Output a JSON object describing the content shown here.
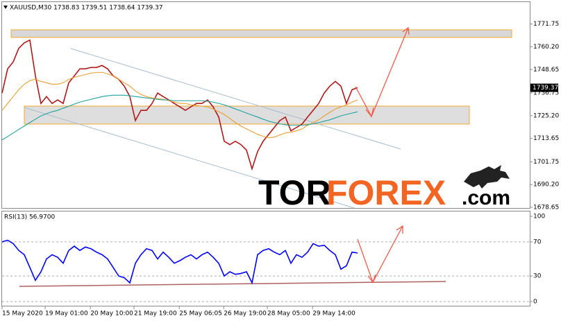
{
  "chart_data": [
    {
      "type": "line",
      "title": "XAUUSD,M30  1738.83 1739.51 1738.64 1739.37",
      "x": [
        0,
        1,
        2,
        3,
        4,
        5,
        6,
        7,
        8,
        9,
        10,
        11,
        12,
        13,
        14,
        15,
        16,
        17,
        18,
        19,
        20,
        21,
        22,
        23,
        24,
        25,
        26,
        27,
        28,
        29,
        30,
        31,
        32,
        33,
        34,
        35,
        36,
        37,
        38,
        39,
        40,
        41,
        42,
        43,
        44,
        45,
        46,
        47,
        48,
        49,
        50,
        51,
        52,
        53,
        54,
        55,
        56,
        57,
        58,
        59,
        60,
        61,
        62,
        63,
        64
      ],
      "series": [
        {
          "color": "#b01818",
          "values": [
            1736.7,
            1749.0,
            1752.5,
            1759.4,
            1762.2,
            1763.6,
            1745.4,
            1731.4,
            1734.9,
            1731.4,
            1733.2,
            1731.4,
            1741.9,
            1745.4,
            1749.0,
            1749.0,
            1749.7,
            1749.7,
            1750.7,
            1749.0,
            1745.4,
            1743.7,
            1740.2,
            1734.9,
            1722.7,
            1727.9,
            1727.9,
            1731.4,
            1736.7,
            1734.9,
            1733.2,
            1731.4,
            1729.7,
            1727.9,
            1729.7,
            1731.4,
            1731.4,
            1733.2,
            1729.7,
            1724.5,
            1712.2,
            1710.5,
            1712.2,
            1710.5,
            1707.7,
            1698.2,
            1707.0,
            1712.2,
            1715.7,
            1719.2,
            1722.7,
            1724.5,
            1717.5,
            1719.2,
            1720.9,
            1724.5,
            1727.9,
            1731.4,
            1736.7,
            1740.2,
            1742.6,
            1740.2,
            1731.4,
            1738.4,
            1739.4
          ]
        },
        {
          "color": "#e8a030",
          "values": [
            1727.9,
            1731.4,
            1734.9,
            1738.4,
            1741.2,
            1743.0,
            1743.7,
            1742.6,
            1741.9,
            1741.2,
            1741.2,
            1741.9,
            1743.7,
            1744.7,
            1745.4,
            1746.1,
            1746.8,
            1747.2,
            1747.2,
            1746.5,
            1745.4,
            1743.7,
            1741.9,
            1740.2,
            1737.7,
            1736.0,
            1734.9,
            1734.2,
            1733.9,
            1733.5,
            1732.8,
            1732.1,
            1731.4,
            1731.4,
            1730.7,
            1730.4,
            1730.0,
            1729.7,
            1728.6,
            1727.2,
            1725.8,
            1723.8,
            1721.7,
            1719.9,
            1718.5,
            1717.1,
            1715.7,
            1714.7,
            1714.0,
            1714.3,
            1715.4,
            1716.4,
            1716.8,
            1717.5,
            1718.5,
            1720.3,
            1721.7,
            1723.1,
            1725.1,
            1726.9,
            1728.6,
            1729.7,
            1730.7,
            1732.1,
            1733.2
          ]
        },
        {
          "color": "#20a0a0",
          "values": [
            1712.9,
            1714.6,
            1716.4,
            1718.2,
            1719.9,
            1721.7,
            1723.4,
            1725.1,
            1726.2,
            1727.2,
            1727.9,
            1729.0,
            1730.0,
            1731.1,
            1732.1,
            1732.8,
            1733.5,
            1734.2,
            1734.9,
            1735.3,
            1735.6,
            1735.6,
            1735.6,
            1735.3,
            1734.9,
            1734.6,
            1734.2,
            1733.9,
            1733.5,
            1733.2,
            1733.2,
            1732.8,
            1732.8,
            1732.8,
            1732.8,
            1732.8,
            1732.8,
            1732.5,
            1732.1,
            1731.4,
            1730.7,
            1729.7,
            1728.6,
            1727.6,
            1726.5,
            1725.5,
            1724.5,
            1723.4,
            1722.4,
            1721.7,
            1721.0,
            1720.6,
            1720.3,
            1720.3,
            1720.3,
            1720.6,
            1721.0,
            1721.7,
            1722.4,
            1723.1,
            1724.1,
            1725.1,
            1725.8,
            1726.5,
            1727.2
          ]
        }
      ],
      "xlim": [
        0,
        95
      ],
      "ylim": [
        1678.3,
        1782.2
      ],
      "yticks": [
        1771.75,
        {
          "value": 1760.2,
          "label": "1760.20"
        },
        1748.65,
        1736.75,
        {
          "value": 1725.2,
          "label": "1725.20"
        },
        1713.65,
        1701.75,
        {
          "value": 1690.2,
          "label": "1690.20"
        },
        1678.65
      ],
      "last_price": {
        "value": 1739.37,
        "label": "1739.37"
      },
      "watermark": {
        "part1": "TOR",
        "part2": "FOREX",
        "part3": ".com"
      }
    },
    {
      "type": "line",
      "title": "RSI(13) 56.9700",
      "x": [
        0,
        1,
        2,
        3,
        4,
        5,
        6,
        7,
        8,
        9,
        10,
        11,
        12,
        13,
        14,
        15,
        16,
        17,
        18,
        19,
        20,
        21,
        22,
        23,
        24,
        25,
        26,
        27,
        28,
        29,
        30,
        31,
        32,
        33,
        34,
        35,
        36,
        37,
        38,
        39,
        40,
        41,
        42,
        43,
        44,
        45,
        46,
        47,
        48,
        49,
        50,
        51,
        52,
        53,
        54,
        55,
        56,
        57,
        58,
        59,
        60,
        61,
        62,
        63,
        64
      ],
      "series": [
        {
          "color": "#0000ff",
          "values": [
            70,
            72,
            68,
            60,
            55,
            40,
            25,
            35,
            50,
            55,
            52,
            45,
            60,
            65,
            60,
            64,
            62,
            58,
            55,
            50,
            40,
            30,
            28,
            22,
            45,
            55,
            62,
            60,
            50,
            58,
            52,
            45,
            48,
            52,
            55,
            50,
            55,
            58,
            52,
            45,
            30,
            35,
            32,
            33,
            35,
            22,
            55,
            60,
            62,
            58,
            55,
            60,
            45,
            55,
            52,
            58,
            68,
            65,
            66,
            60,
            55,
            38,
            42,
            58,
            57
          ]
        }
      ],
      "xlim": [
        0,
        95
      ],
      "ylim": [
        -8.1,
        105.7
      ],
      "yticks": [
        100,
        70,
        30,
        0
      ],
      "xticks": [
        {
          "value": 0,
          "label": "15 May 2020"
        },
        {
          "value": 7.75,
          "label": "19 May 01:00"
        },
        {
          "value": 15.9,
          "label": "20 May 10:00"
        },
        {
          "value": 23.75,
          "label": "21 May 19:00"
        },
        {
          "value": 31.9,
          "label": "25 May 06:05"
        },
        {
          "value": 39.9,
          "label": "26 May 19:00"
        },
        {
          "value": 47.75,
          "label": "28 May 05:00"
        },
        {
          "value": 55.9,
          "label": "29 May 14:00"
        }
      ]
    }
  ]
}
